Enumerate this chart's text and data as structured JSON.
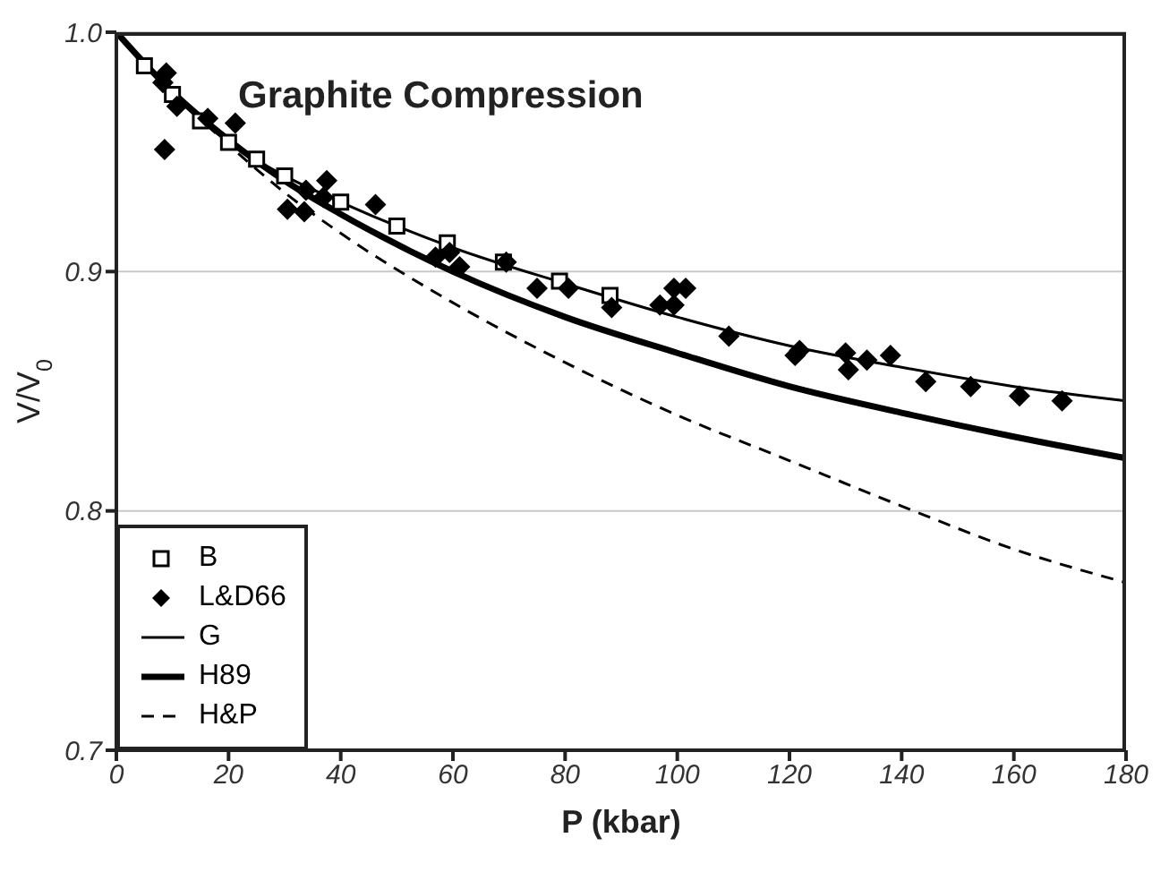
{
  "chart_data": {
    "type": "scatter",
    "title": "Graphite Compression",
    "xlabel": "P (kbar)",
    "ylabel": "V/V$_{0}$",
    "xlim": [
      0,
      180
    ],
    "xticks": [
      0,
      20,
      40,
      60,
      80,
      100,
      120,
      140,
      160,
      180
    ],
    "ylim": [
      0.7,
      1.0
    ],
    "yticks": [
      0.7,
      0.8,
      0.9,
      {
        "value": 1.0,
        "label": "1.0"
      }
    ],
    "grid": "y",
    "legend": "bottom left",
    "series": [
      {
        "name": "B",
        "marker": "square",
        "color": "#000000",
        "x": [
          5,
          10,
          15,
          20,
          25,
          30,
          40,
          50,
          59,
          69,
          79,
          88
        ],
        "values": [
          0.986,
          0.974,
          0.963,
          0.954,
          0.947,
          0.94,
          0.929,
          0.919,
          0.912,
          0.904,
          0.896,
          0.89
        ]
      },
      {
        "name": "L&D66",
        "marker": "diamond",
        "color": "#000000",
        "x": [
          8.9,
          8.3,
          8.6,
          10.8,
          16.3,
          21.2,
          30.5,
          33.5,
          33.8,
          37.5,
          36.9,
          46.2,
          56.9,
          61.2,
          59.4,
          69.5,
          75,
          80.6,
          88.3,
          96.9,
          99.4,
          101.5,
          99.4,
          109.2,
          121,
          121.8,
          130,
          130.5,
          133.8,
          138,
          144.3,
          152.3,
          161,
          168.6
        ],
        "values": [
          0.983,
          0.979,
          0.951,
          0.969,
          0.964,
          0.962,
          0.926,
          0.925,
          0.934,
          0.938,
          0.931,
          0.928,
          0.906,
          0.902,
          0.908,
          0.904,
          0.893,
          0.893,
          0.885,
          0.886,
          0.893,
          0.893,
          0.886,
          0.873,
          0.865,
          0.867,
          0.866,
          0.859,
          0.863,
          0.865,
          0.854,
          0.852,
          0.848,
          0.846
        ]
      },
      {
        "name": "G",
        "type": "line",
        "marker": "none",
        "line_style": "solid",
        "color": "#000000",
        "x": [
          0,
          10,
          20,
          30,
          40,
          60,
          80,
          100,
          120,
          140,
          160,
          180
        ],
        "values": [
          1.0,
          0.974,
          0.954,
          0.94,
          0.929,
          0.91,
          0.895,
          0.881,
          0.869,
          0.86,
          0.852,
          0.846
        ]
      },
      {
        "name": "H89",
        "type": "line",
        "marker": "none",
        "line_style": "solid",
        "color": "#000000",
        "x": [
          0,
          10,
          20,
          30,
          40,
          60,
          80,
          100,
          120,
          140,
          160,
          180
        ],
        "values": [
          1.0,
          0.975,
          0.955,
          0.938,
          0.924,
          0.9,
          0.881,
          0.866,
          0.852,
          0.841,
          0.831,
          0.822
        ]
      },
      {
        "name": "H&P",
        "type": "line",
        "marker": "none",
        "line_style": "dashed",
        "color": "#000000",
        "x": [
          0,
          10,
          20,
          30,
          40,
          60,
          80,
          100,
          120,
          140,
          160,
          180
        ],
        "values": [
          1.0,
          0.975,
          0.953,
          0.933,
          0.916,
          0.887,
          0.862,
          0.84,
          0.821,
          0.802,
          0.784,
          0.77
        ]
      }
    ]
  }
}
